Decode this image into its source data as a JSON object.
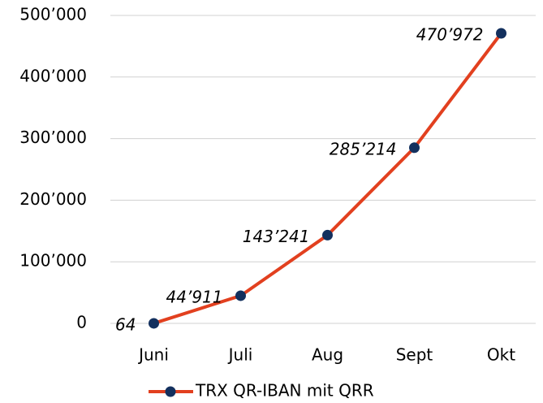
{
  "chart_data": {
    "type": "line",
    "categories": [
      "Juni",
      "Juli",
      "Aug",
      "Sept",
      "Okt"
    ],
    "series": [
      {
        "name": "TRX QR-IBAN mit QRR",
        "color": "#e2401f",
        "marker_color": "#13305e",
        "values": [
          64,
          44911,
          143241,
          285214,
          470972
        ],
        "value_labels": [
          "64",
          "44’911",
          "143’241",
          "285’214",
          "470’972"
        ]
      }
    ],
    "ylim": [
      0,
      500000
    ],
    "yticks": [
      0,
      {
        "value": 100000,
        "label": "100’000"
      },
      {
        "value": 200000,
        "label": "200’000"
      },
      {
        "value": 300000,
        "label": "300’000"
      },
      {
        "value": 400000,
        "label": "400’000"
      },
      {
        "value": 500000,
        "label": "500’000"
      }
    ],
    "grid": true,
    "legend": "bottom"
  }
}
